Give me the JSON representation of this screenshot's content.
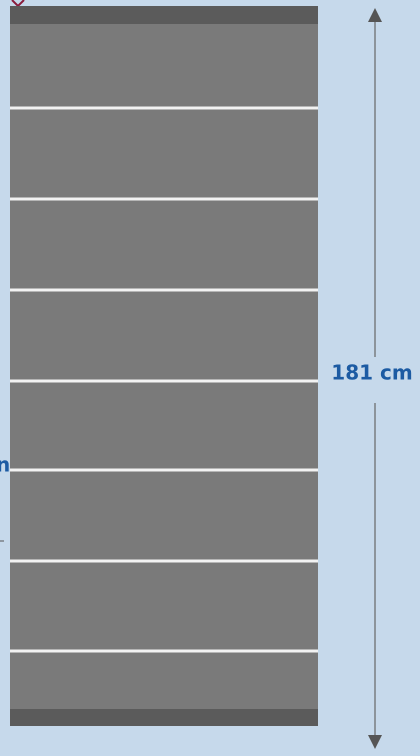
{
  "dimension": {
    "label": "181 cm"
  },
  "side_label": "n"
}
